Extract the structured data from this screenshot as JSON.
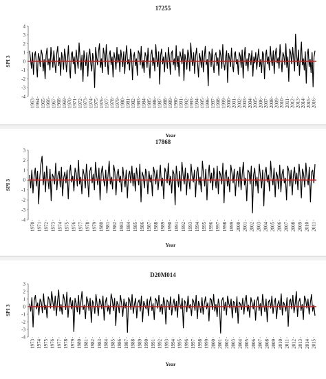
{
  "chart_data": [
    {
      "type": "line",
      "title": "17255",
      "xlabel": "Year",
      "ylabel": "SPI 3",
      "ylim": [
        -4,
        4
      ],
      "yticks": [
        4,
        3,
        2,
        1,
        0,
        -1,
        -2,
        -3,
        -4
      ],
      "x_tick_labels": [
        "1963",
        "1964",
        "1965",
        "1966",
        "1967",
        "1968",
        "1969",
        "1970",
        "1971",
        "1972",
        "1973",
        "1974",
        "1975",
        "1976",
        "1977",
        "1978",
        "1979",
        "1980",
        "1981",
        "1982",
        "1983",
        "1984",
        "1985",
        "1986",
        "1987",
        "1988",
        "1989",
        "1990",
        "1991",
        "1992",
        "1993",
        "1994",
        "1995",
        "1996",
        "1997",
        "1998",
        "1999",
        "2000",
        "2001",
        "2002",
        "2003",
        "2004",
        "2005",
        "2006",
        "2007",
        "2008",
        "2009",
        "2010",
        "2011",
        "2012",
        "2013",
        "2014",
        "2015",
        "2016"
      ],
      "baseline": 0,
      "series": [
        {
          "values": [
            1.2,
            0.2,
            -0.8,
            1.0,
            -1.5,
            0.6,
            1.1,
            -0.3,
            -1.8,
            0.9,
            0.4,
            -0.6,
            1.3,
            0.8,
            -1.1,
            0.2,
            -2.0,
            0.7,
            1.5,
            -0.4,
            0.3,
            -1.0,
            1.6,
            0.5,
            -0.7,
            1.2,
            -0.2,
            -1.3,
            0.9,
            1.7,
            -0.5,
            0.4,
            -1.6,
            1.0,
            0.3,
            -0.9,
            1.4,
            0.6,
            -1.2,
            0.1,
            1.8,
            -0.6,
            -1.9,
            0.8,
            1.1,
            -0.3,
            0.5,
            -1.4,
            1.3,
            0.2,
            -0.8,
            2.1,
            0.4,
            -1.0,
            0.7,
            -2.3,
            1.2,
            0.3,
            -0.5,
            1.0,
            -1.7,
            0.6,
            1.4,
            -0.2,
            -1.1,
            0.9,
            0.2,
            -3.0,
            1.6,
            0.5,
            -0.4,
            1.1,
            2.0,
            -0.7,
            0.3,
            -1.3,
            1.5,
            0.8,
            -0.6,
            1.9,
            0.2,
            -1.5,
            0.7,
            1.2,
            -0.4,
            0.5,
            -1.8,
            1.0,
            0.3,
            -0.9,
            1.6,
            -0.2,
            0.8,
            -1.2,
            1.3,
            0.4,
            -0.6,
            1.1,
            -1.4,
            0.6,
            1.8,
            -0.3,
            0.2,
            -1.0,
            1.4,
            0.7,
            -2.1,
            0.5,
            1.0,
            -0.5,
            0.3,
            -1.6,
            1.2,
            0.9,
            -0.4,
            1.7,
            -0.8,
            0.1,
            -1.3,
            1.0,
            0.6,
            -0.7,
            1.5,
            -0.2,
            -1.9,
            0.8,
            1.3,
            -0.5,
            0.4,
            -1.1,
            1.9,
            0.3,
            -0.6,
            1.1,
            -2.6,
            0.7,
            1.4,
            -0.3,
            0.5,
            -1.2,
            1.0,
            0.2,
            -0.8,
            1.6,
            0.4,
            -1.5,
            0.9,
            1.2,
            -0.4,
            0.3,
            -1.0,
            1.8,
            -0.6,
            0.6,
            -1.7,
            1.1,
            0.5,
            -0.3,
            1.4,
            -2.2,
            0.8,
            0.2,
            -0.9,
            1.3,
            0.7,
            -1.1,
            2.1,
            0.4,
            -0.5,
            1.0,
            -1.4,
            0.6,
            1.5,
            -0.2,
            -1.8,
            0.9,
            0.3,
            -0.7,
            1.2,
            -1.2,
            0.5,
            1.7,
            -0.4,
            0.2,
            -2.8,
            1.1,
            0.8,
            -0.6,
            1.4,
            -0.3,
            -1.3,
            0.7,
            1.0,
            -0.5,
            0.4,
            -1.6,
            1.3,
            0.6,
            -0.8,
            1.9,
            -0.2,
            -1.0,
            0.5,
            1.2,
            -2.4,
            0.9,
            0.3,
            -0.6,
            1.5,
            -0.4,
            -1.2,
            0.8,
            1.1,
            -0.3,
            0.2,
            -1.5,
            1.0,
            0.6,
            -0.7,
            1.3,
            -1.9,
            0.4,
            1.6,
            -0.5,
            0.3,
            -1.1,
            0.9,
            0.7,
            -0.4,
            1.2,
            -1.7,
            0.5,
            -0.2,
            1.0,
            -0.9,
            0.4,
            1.4,
            -0.6,
            0.2,
            -1.3,
            1.1,
            0.8,
            -2.0,
            0.6,
            1.3,
            -0.3,
            0.5,
            -1.0,
            1.7,
            0.2,
            -0.5,
            1.2,
            -1.4,
            0.7,
            1.5,
            -0.2,
            0.4,
            -0.8,
            1.9,
            0.3,
            -1.2,
            1.0,
            0.6,
            -0.4,
            2.0,
            -0.7,
            0.5,
            -2.3,
            1.4,
            0.9,
            -0.3,
            1.6,
            0.2,
            -1.1,
            3.1,
            0.8,
            -0.5,
            1.3,
            -1.6,
            0.6,
            2.2,
            -0.4,
            0.3,
            -1.0,
            1.1,
            -2.5,
            0.7,
            1.4,
            -0.6,
            0.2,
            -1.3,
            1.0,
            -2.9,
            0.5,
            1.2
          ]
        }
      ]
    },
    {
      "type": "line",
      "title": "17868",
      "xlabel": "Year",
      "ylabel": "SPI 3",
      "ylim": [
        -4,
        3
      ],
      "yticks": [
        3,
        2,
        1,
        0,
        -1,
        -2,
        -3,
        -4
      ],
      "x_tick_labels": [
        "1970",
        "1971",
        "1972",
        "1973",
        "1974",
        "1975",
        "1976",
        "1977",
        "1978",
        "1979",
        "1980",
        "1981",
        "1982",
        "1983",
        "1984",
        "1985",
        "1986",
        "1987",
        "1988",
        "1989",
        "1990",
        "1991",
        "1992",
        "1993",
        "1994",
        "1995",
        "1996",
        "1997",
        "1998",
        "1999",
        "2000",
        "2001",
        "2002",
        "2003",
        "2004",
        "2005",
        "2006",
        "2007",
        "2008",
        "2009",
        "2010",
        "2011"
      ],
      "baseline": 0,
      "series": [
        {
          "values": [
            0.5,
            -0.8,
            1.0,
            -1.3,
            0.4,
            1.2,
            -0.6,
            0.9,
            -2.4,
            0.3,
            1.6,
            2.4,
            -0.5,
            0.8,
            -1.2,
            1.4,
            0.2,
            -0.9,
            1.1,
            -2.1,
            0.6,
            0.3,
            -0.4,
            1.7,
            -1.0,
            0.5,
            0.9,
            -0.7,
            1.3,
            -1.6,
            0.2,
            0.8,
            -0.3,
            1.0,
            -1.9,
            0.6,
            1.5,
            -0.2,
            0.4,
            -1.1,
            1.2,
            0.7,
            -0.6,
            2.0,
            -0.4,
            0.3,
            -1.4,
            1.1,
            0.5,
            -0.8,
            1.6,
            0.2,
            -1.7,
            0.9,
            1.3,
            -0.3,
            0.6,
            -1.0,
            1.8,
            0.4,
            -0.5,
            1.2,
            -2.0,
            0.7,
            1.4,
            0.1,
            -0.6,
            1.0,
            -1.3,
            0.5,
            1.9,
            -0.4,
            0.3,
            -0.9,
            1.5,
            0.8,
            -1.5,
            0.6,
            1.1,
            -0.2,
            0.4,
            -1.2,
            1.3,
            0.2,
            -0.7,
            1.0,
            -1.8,
            0.5,
            0.9,
            -0.3,
            1.4,
            -0.6,
            0.7,
            -1.1,
            1.2,
            0.3,
            -0.5,
            1.6,
            -2.2,
            0.8,
            0.4,
            -0.8,
            1.1,
            0.6,
            -1.4,
            0.9,
            -0.2,
            0.5,
            -1.6,
            1.3,
            0.7,
            -0.4,
            1.0,
            -1.0,
            0.3,
            1.5,
            -0.6,
            0.2,
            -1.9,
            1.2,
            0.8,
            -0.3,
            1.7,
            -0.5,
            0.4,
            -1.3,
            1.0,
            0.6,
            -2.5,
            1.4,
            0.3,
            -0.7,
            0.9,
            -1.1,
            1.8,
            0.5,
            -0.4,
            1.2,
            -1.5,
            0.7,
            0.2,
            -0.9,
            1.6,
            0.4,
            -0.2,
            1.0,
            -1.7,
            0.8,
            1.3,
            -0.5,
            0.3,
            -1.2,
            1.9,
            0.6,
            -0.6,
            1.1,
            -2.0,
            0.4,
            1.5,
            -0.3,
            0.7,
            -1.0,
            1.2,
            0.2,
            -0.8,
            1.4,
            -1.4,
            0.9,
            0.5,
            -0.4,
            1.7,
            -2.3,
            0.6,
            1.0,
            -0.6,
            0.3,
            -1.2,
            1.5,
            0.7,
            -0.3,
            1.1,
            -1.6,
            0.4,
            0.9,
            -0.7,
            1.3,
            -1.0,
            0.6,
            1.8,
            -0.5,
            0.2,
            -2.1,
            1.0,
            0.8,
            -0.4,
            1.4,
            -3.3,
            0.5,
            1.2,
            -0.6,
            0.3,
            -1.3,
            1.6,
            0.4,
            -0.8,
            1.0,
            -2.6,
            0.7,
            1.3,
            -0.2,
            0.5,
            -1.1,
            1.9,
            0.3,
            -0.5,
            1.2,
            -1.7,
            0.8,
            0.4,
            -0.9,
            1.5,
            -1.2,
            0.6,
            1.1,
            -0.3,
            0.2,
            -2.0,
            1.4,
            0.9,
            -0.6,
            1.0,
            -1.5,
            0.5,
            1.3,
            -0.4,
            0.7,
            -1.0,
            1.6,
            0.3,
            -1.8,
            1.1,
            0.6,
            -0.7,
            1.7,
            0.2,
            -0.5,
            1.3,
            -2.2,
            0.8,
            1.0,
            -0.3,
            1.6
          ]
        }
      ]
    },
    {
      "type": "line",
      "title": "D20M014",
      "xlabel": "Year",
      "ylabel": "SPI 3",
      "ylim": [
        -4,
        3
      ],
      "yticks": [
        3,
        2,
        1,
        0,
        -1,
        -2,
        -3,
        -4
      ],
      "x_tick_labels": [
        "1973",
        "1974",
        "1975",
        "1976",
        "1977",
        "1978",
        "1979",
        "1980",
        "1981",
        "1982",
        "1983",
        "1984",
        "1985",
        "1986",
        "1987",
        "1988",
        "1989",
        "1990",
        "1991",
        "1992",
        "1993",
        "1994",
        "1995",
        "1996",
        "1997",
        "1998",
        "1999",
        "2000",
        "2001",
        "2002",
        "2003",
        "2004",
        "2005",
        "2006",
        "2007",
        "2008",
        "2009",
        "2010",
        "2011",
        "2012",
        "2013",
        "2014",
        "2015"
      ],
      "baseline": 0,
      "series": [
        {
          "values": [
            0.4,
            -0.6,
            1.2,
            -2.7,
            0.8,
            1.5,
            -0.3,
            0.5,
            -1.1,
            1.0,
            0.6,
            -0.8,
            1.7,
            -0.4,
            0.2,
            -1.5,
            1.3,
            0.9,
            -0.2,
            2.0,
            0.6,
            -0.5,
            1.4,
            -1.2,
            0.7,
            2.2,
            -0.6,
            0.3,
            -1.0,
            1.6,
            0.9,
            -0.4,
            1.9,
            -1.4,
            0.5,
            1.2,
            -0.3,
            0.8,
            -3.3,
            1.1,
            0.4,
            -0.7,
            1.5,
            -1.0,
            0.6,
            2.0,
            -0.4,
            0.2,
            -1.6,
            1.3,
            0.7,
            -0.5,
            1.1,
            -2.1,
            0.8,
            0.4,
            -0.9,
            1.6,
            0.3,
            -1.2,
            1.0,
            0.6,
            -0.3,
            1.4,
            -1.8,
            0.5,
            1.2,
            -0.6,
            0.2,
            -1.0,
            1.7,
            0.9,
            -0.5,
            1.1,
            -2.5,
            0.7,
            0.3,
            -0.8,
            1.5,
            0.4,
            -1.3,
            1.0,
            -0.2,
            0.6,
            -3.4,
            1.2,
            0.8,
            -0.4,
            1.6,
            -0.9,
            0.3,
            1.1,
            -1.5,
            0.5,
            0.9,
            -0.6,
            1.4,
            -2.0,
            0.7,
            0.2,
            -0.3,
            1.0,
            -1.2,
            0.6,
            1.3,
            -0.5,
            0.4,
            -1.7,
            1.1,
            0.8,
            -0.2,
            1.5,
            -0.7,
            0.3,
            -1.0,
            1.2,
            0.5,
            -2.3,
            0.9,
            0.6,
            -0.4,
            1.3,
            -1.1,
            0.2,
            1.0,
            -0.6,
            0.7,
            -1.4,
            1.6,
            0.4,
            -0.3,
            1.1,
            -2.8,
            0.8,
            0.5,
            -0.7,
            1.4,
            -0.2,
            0.3,
            -1.2,
            1.0,
            0.6,
            -0.5,
            1.5,
            -1.6,
            0.7,
            0.2,
            -0.8,
            1.2,
            -1.0,
            0.4,
            1.3,
            -0.3,
            0.5,
            -1.9,
            1.1,
            0.9,
            -0.4,
            1.6,
            -0.6,
            0.3,
            -1.3,
            1.0,
            0.2,
            -3.5,
            0.8,
            1.2,
            -0.5,
            0.6,
            -1.1,
            1.4,
            0.4,
            -0.2,
            1.0,
            -1.5,
            0.7,
            0.5,
            -0.8,
            1.3,
            -2.2,
            0.6,
            0.3,
            -0.4,
            1.1,
            -1.0,
            0.8,
            1.5,
            -0.6,
            0.2,
            -1.4,
            1.2,
            0.5,
            -0.3,
            0.9,
            -1.8,
            0.7,
            1.3,
            -0.5,
            0.4,
            -1.2,
            1.6,
            0.3,
            -0.7,
            1.0,
            -2.0,
            0.6,
            0.9,
            -0.2,
            1.4,
            -0.9,
            0.5,
            1.1,
            -1.6,
            0.3,
            0.8,
            -0.4,
            1.7,
            -1.1,
            0.6,
            0.2,
            -0.6,
            1.2,
            -2.6,
            0.7,
            1.0,
            -0.3,
            1.5,
            -0.8,
            0.4,
            2.0,
            -1.3,
            0.6,
            1.1,
            -0.5,
            0.3,
            -1.7,
            1.4,
            0.9,
            -0.2,
            1.0,
            -1.0,
            0.5,
            1.6,
            -0.6,
            0.2,
            -1.2
          ]
        }
      ]
    }
  ]
}
